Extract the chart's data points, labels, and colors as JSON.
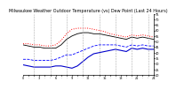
{
  "title": "Milwaukee Weather Outdoor Temperature (vs) Dew Point (Last 24 Hours)",
  "title_fontsize": 3.5,
  "background_color": "#ffffff",
  "ylim": [
    20,
    75
  ],
  "yticks": [
    20,
    25,
    30,
    35,
    40,
    45,
    50,
    55,
    60,
    65,
    70,
    75
  ],
  "x": [
    0,
    1,
    2,
    3,
    4,
    5,
    6,
    7,
    8,
    9,
    10,
    11,
    12,
    13,
    14,
    15,
    16,
    17,
    18,
    19,
    20,
    21,
    22,
    23,
    24
  ],
  "temp_solid": [
    47,
    46,
    45,
    45,
    44,
    44,
    44,
    47,
    52,
    55,
    57,
    58,
    58,
    57,
    57,
    56,
    55,
    54,
    53,
    52,
    54,
    53,
    54,
    53,
    52
  ],
  "temp_dotted": [
    48,
    48,
    47,
    47,
    46,
    46,
    47,
    51,
    57,
    61,
    62,
    62,
    62,
    61,
    60,
    59,
    57,
    56,
    55,
    54,
    56,
    55,
    56,
    55,
    54
  ],
  "dew_solid": [
    29,
    28,
    27,
    27,
    27,
    27,
    28,
    28,
    27,
    26,
    28,
    32,
    36,
    39,
    40,
    41,
    42,
    43,
    42,
    41,
    44,
    43,
    44,
    43,
    43
  ],
  "dew_dotted": [
    34,
    34,
    33,
    33,
    33,
    33,
    34,
    36,
    38,
    38,
    40,
    42,
    44,
    46,
    47,
    47,
    47,
    47,
    46,
    45,
    47,
    46,
    47,
    46,
    46
  ],
  "color_temp_solid": "#000000",
  "color_temp_dotted": "#ff0000",
  "color_dew_solid": "#0000cc",
  "color_dew_dotted": "#0000ff",
  "grid_color": "#aaaaaa",
  "vline_positions": [
    2,
    5,
    8,
    11,
    14,
    17,
    20,
    23
  ]
}
